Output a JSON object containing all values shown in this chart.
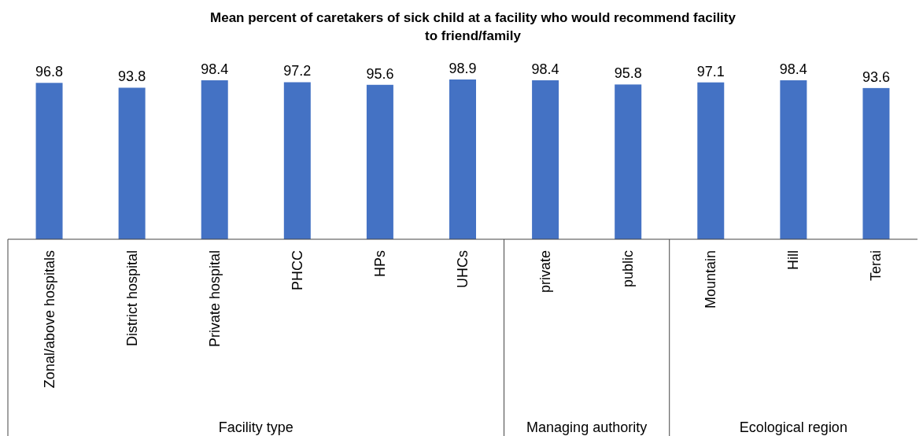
{
  "chart_data": {
    "type": "bar",
    "title": "Mean percent of caretakers of sick child at a facility who would recommend facility to friend/family",
    "categories": [
      "Zonal/above hospitals",
      "District hospital",
      "Private hospital",
      "PHCC",
      "HPs",
      "UHCs",
      "private",
      "public",
      "Mountain",
      "Hill",
      "Terai"
    ],
    "values": [
      96.8,
      93.8,
      98.4,
      97.2,
      95.6,
      98.9,
      98.4,
      95.8,
      97.1,
      98.4,
      93.6
    ],
    "color": "#4472c4",
    "data_labels": true,
    "annotations": [
      "Facility type",
      "Managing authority",
      "Ecological region"
    ]
  }
}
